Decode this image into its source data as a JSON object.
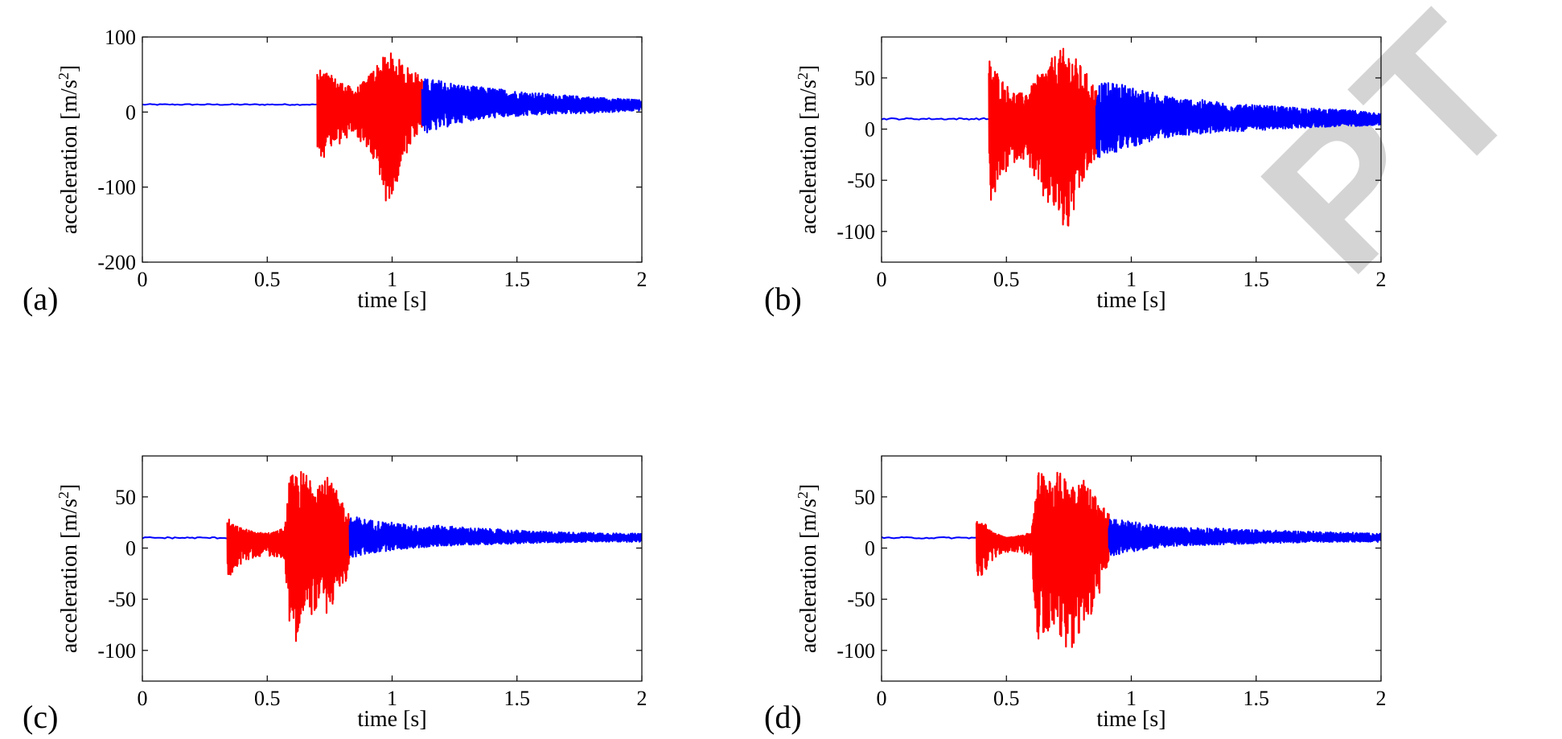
{
  "chart_data": [
    {
      "type": "line",
      "panel_label": "(a)",
      "xlabel": "time [s]",
      "ylabel": "acceleration [m/s",
      "ylabel_sup": "2",
      "ylabel_close": "]",
      "xlim": [
        0,
        2
      ],
      "ylim": [
        -200,
        100
      ],
      "xticks": [
        0,
        0.5,
        1,
        1.5,
        2
      ],
      "xtick_labels": [
        "0",
        "0.5",
        "1",
        "1.5",
        "2"
      ],
      "yticks": [
        -200,
        -100,
        0,
        100
      ],
      "ytick_labels": [
        "-200",
        "-100",
        "0",
        "100"
      ],
      "grid": false,
      "baseline": 10,
      "series": [
        {
          "color": "#0000ff",
          "segment": "quiet",
          "t_range": [
            0,
            0.7
          ]
        },
        {
          "color": "#ff0000",
          "segment": "event",
          "t_range": [
            0.7,
            1.12
          ],
          "x": [
            0.7,
            0.72,
            0.75,
            0.8,
            0.85,
            0.9,
            0.93,
            0.95,
            0.97,
            0.99,
            1.0,
            1.03,
            1.06,
            1.09,
            1.12
          ],
          "peak_max": [
            55,
            58,
            50,
            40,
            30,
            45,
            62,
            68,
            75,
            80,
            78,
            70,
            62,
            55,
            45
          ],
          "peak_min": [
            -65,
            -62,
            -55,
            -40,
            -30,
            -50,
            -75,
            -95,
            -118,
            -128,
            -108,
            -85,
            -60,
            -35,
            -25
          ]
        },
        {
          "color": "#0000ff",
          "segment": "decay",
          "t_range": [
            1.12,
            2.0
          ],
          "x": [
            1.12,
            1.2,
            1.3,
            1.4,
            1.5,
            1.6,
            1.7,
            1.8,
            1.9,
            2.0
          ],
          "peak_max": [
            45,
            42,
            35,
            32,
            28,
            25,
            22,
            20,
            18,
            16
          ],
          "peak_min": [
            -30,
            -22,
            -12,
            -8,
            -6,
            -4,
            -2,
            -2,
            0,
            2
          ]
        }
      ]
    },
    {
      "type": "line",
      "panel_label": "(b)",
      "xlabel": "time [s]",
      "ylabel": "acceleration [m/s",
      "ylabel_sup": "2",
      "ylabel_close": "]",
      "xlim": [
        0,
        2
      ],
      "ylim": [
        -130,
        90
      ],
      "xticks": [
        0,
        0.5,
        1,
        1.5,
        2
      ],
      "xtick_labels": [
        "0",
        "0.5",
        "1",
        "1.5",
        "2"
      ],
      "yticks": [
        -100,
        -50,
        0,
        50
      ],
      "ytick_labels": [
        "-100",
        "-50",
        "0",
        "50"
      ],
      "grid": false,
      "baseline": 10,
      "series": [
        {
          "color": "#0000ff",
          "segment": "quiet",
          "t_range": [
            0,
            0.43
          ]
        },
        {
          "color": "#ff0000",
          "segment": "event",
          "t_range": [
            0.43,
            0.86
          ],
          "x": [
            0.43,
            0.45,
            0.48,
            0.52,
            0.56,
            0.6,
            0.63,
            0.66,
            0.69,
            0.72,
            0.74,
            0.76,
            0.79,
            0.82,
            0.86
          ],
          "peak_max": [
            70,
            62,
            50,
            38,
            35,
            42,
            55,
            62,
            72,
            78,
            80,
            75,
            65,
            55,
            40
          ],
          "peak_min": [
            -75,
            -68,
            -50,
            -35,
            -28,
            -40,
            -65,
            -75,
            -82,
            -95,
            -110,
            -90,
            -70,
            -45,
            -30
          ]
        },
        {
          "color": "#0000ff",
          "segment": "decay",
          "t_range": [
            0.86,
            2.0
          ],
          "x": [
            0.86,
            0.95,
            1.05,
            1.15,
            1.3,
            1.45,
            1.6,
            1.75,
            1.9,
            2.0
          ],
          "peak_max": [
            45,
            45,
            38,
            32,
            28,
            24,
            22,
            20,
            18,
            16
          ],
          "peak_min": [
            -30,
            -22,
            -14,
            -8,
            -4,
            -2,
            0,
            2,
            3,
            4
          ]
        }
      ]
    },
    {
      "type": "line",
      "panel_label": "(c)",
      "xlabel": "time [s]",
      "ylabel": "acceleration [m/s",
      "ylabel_sup": "2",
      "ylabel_close": "]",
      "xlim": [
        0,
        2
      ],
      "ylim": [
        -130,
        90
      ],
      "xticks": [
        0,
        0.5,
        1,
        1.5,
        2
      ],
      "xtick_labels": [
        "0",
        "0.5",
        "1",
        "1.5",
        "2"
      ],
      "yticks": [
        -100,
        -50,
        0,
        50
      ],
      "ytick_labels": [
        "-100",
        "-50",
        "0",
        "50"
      ],
      "grid": false,
      "baseline": 10,
      "series": [
        {
          "color": "#0000ff",
          "segment": "quiet",
          "t_range": [
            0,
            0.34
          ]
        },
        {
          "color": "#ff0000",
          "segment": "event",
          "t_range": [
            0.34,
            0.83
          ],
          "x": [
            0.34,
            0.37,
            0.42,
            0.47,
            0.52,
            0.57,
            0.59,
            0.62,
            0.66,
            0.7,
            0.74,
            0.78,
            0.83
          ],
          "peak_max": [
            30,
            22,
            18,
            15,
            15,
            20,
            70,
            76,
            75,
            73,
            70,
            55,
            35
          ],
          "peak_min": [
            -32,
            -20,
            -12,
            -8,
            -8,
            -10,
            -85,
            -92,
            -70,
            -60,
            -65,
            -50,
            -25
          ]
        },
        {
          "color": "#0000ff",
          "segment": "decay",
          "t_range": [
            0.83,
            2.0
          ],
          "x": [
            0.83,
            0.9,
            1.0,
            1.1,
            1.2,
            1.3,
            1.45,
            1.6,
            1.8,
            2.0
          ],
          "peak_max": [
            32,
            28,
            25,
            22,
            22,
            20,
            18,
            16,
            15,
            14
          ],
          "peak_min": [
            -10,
            -6,
            -2,
            0,
            2,
            3,
            4,
            5,
            6,
            6
          ]
        }
      ]
    },
    {
      "type": "line",
      "panel_label": "(d)",
      "xlabel": "time [s]",
      "ylabel": "acceleration [m/s",
      "ylabel_sup": "2",
      "ylabel_close": "]",
      "xlim": [
        0,
        2
      ],
      "ylim": [
        -130,
        90
      ],
      "xticks": [
        0,
        0.5,
        1,
        1.5,
        2
      ],
      "xtick_labels": [
        "0",
        "0.5",
        "1",
        "1.5",
        "2"
      ],
      "yticks": [
        -100,
        -50,
        0,
        50
      ],
      "ytick_labels": [
        "-100",
        "-50",
        "0",
        "50"
      ],
      "grid": false,
      "baseline": 10,
      "series": [
        {
          "color": "#0000ff",
          "segment": "quiet",
          "t_range": [
            0,
            0.38
          ]
        },
        {
          "color": "#ff0000",
          "segment": "event",
          "t_range": [
            0.38,
            0.91
          ],
          "x": [
            0.38,
            0.41,
            0.45,
            0.5,
            0.55,
            0.6,
            0.62,
            0.65,
            0.69,
            0.73,
            0.77,
            0.81,
            0.85,
            0.88,
            0.91
          ],
          "peak_max": [
            28,
            25,
            15,
            10,
            12,
            15,
            75,
            78,
            76,
            72,
            70,
            68,
            55,
            45,
            35
          ],
          "peak_min": [
            -35,
            -25,
            -10,
            -4,
            -4,
            -8,
            -88,
            -90,
            -75,
            -95,
            -102,
            -85,
            -60,
            -40,
            -20
          ]
        },
        {
          "color": "#0000ff",
          "segment": "decay",
          "t_range": [
            0.91,
            2.0
          ],
          "x": [
            0.91,
            1.0,
            1.1,
            1.2,
            1.3,
            1.45,
            1.6,
            1.75,
            1.9,
            2.0
          ],
          "peak_max": [
            30,
            26,
            22,
            20,
            20,
            18,
            17,
            16,
            15,
            14
          ],
          "peak_min": [
            -8,
            -4,
            0,
            2,
            3,
            4,
            5,
            6,
            6,
            6
          ]
        }
      ]
    }
  ],
  "watermark": "PT"
}
